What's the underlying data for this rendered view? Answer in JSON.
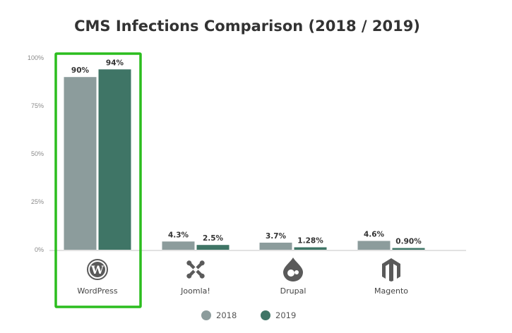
{
  "chart_data": {
    "type": "bar",
    "title": "CMS Infections Comparison (2018 / 2019)",
    "xlabel": "",
    "ylabel": "",
    "ylim": [
      0,
      100
    ],
    "yticks": [
      "0%",
      "25%",
      "50%",
      "75%",
      "100%"
    ],
    "grid": false,
    "legend": "bottom-center",
    "categories": [
      "WordPress",
      "Joomla!",
      "Drupal",
      "Magento"
    ],
    "category_icons": [
      "wordpress-icon",
      "joomla-icon",
      "drupal-icon",
      "magento-icon"
    ],
    "highlighted_category": "WordPress",
    "highlight_color": "#2bbd1e",
    "series": [
      {
        "name": "2018",
        "color": "#8c9c9c",
        "values": [
          90,
          4.3,
          3.7,
          4.6
        ],
        "labels": [
          "90%",
          "4.3%",
          "3.7%",
          "4.6%"
        ]
      },
      {
        "name": "2019",
        "color": "#3f7566",
        "values": [
          94,
          2.5,
          1.28,
          0.9
        ],
        "labels": [
          "94%",
          "2.5%",
          "1.28%",
          "0.90%"
        ]
      }
    ]
  }
}
